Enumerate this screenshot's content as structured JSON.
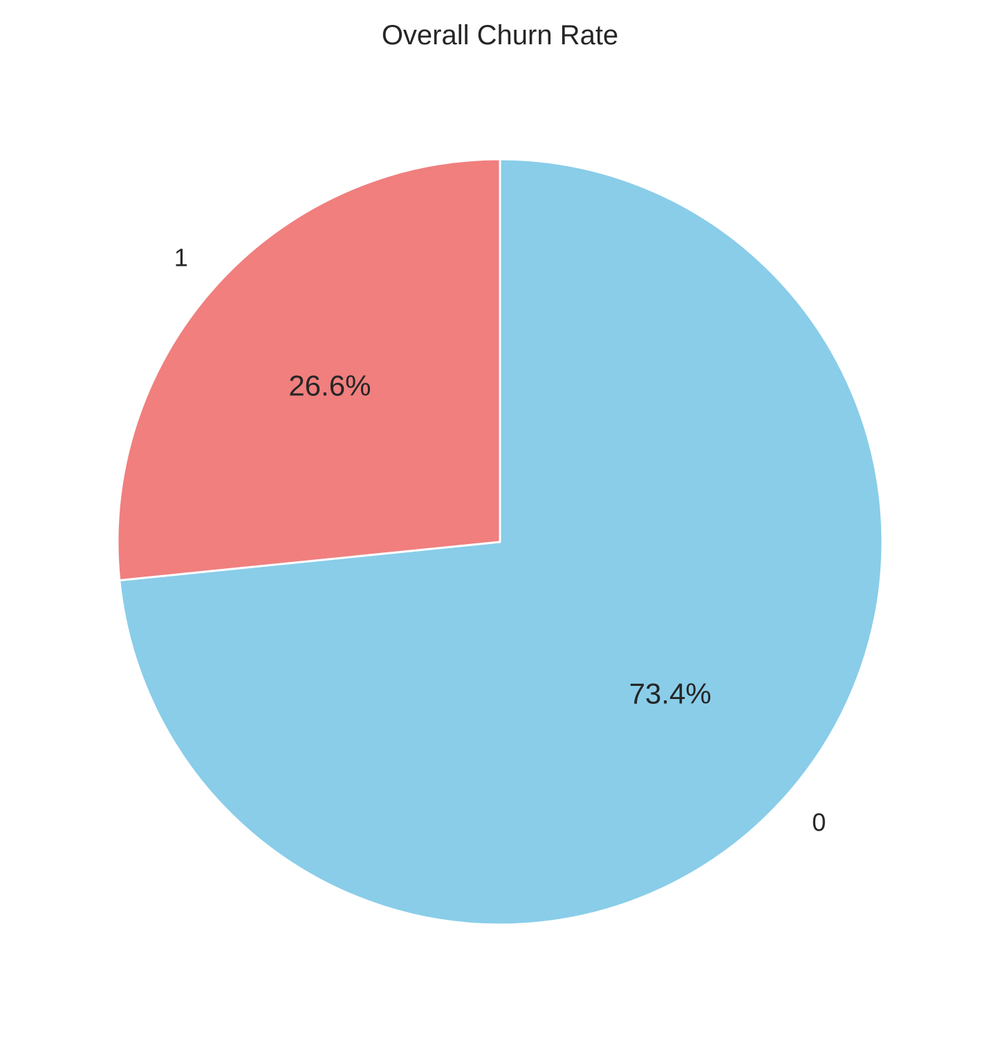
{
  "chart_data": {
    "type": "pie",
    "title": "Overall Churn Rate",
    "labels": [
      "0",
      "1"
    ],
    "values": [
      73.4,
      26.6
    ],
    "percent_labels": [
      "73.4%",
      "26.6%"
    ],
    "colors": [
      "#89cde9",
      "#f07f7e"
    ],
    "start_angle_deg": 90,
    "direction": "clockwise",
    "edge_color": "#ffffff"
  }
}
